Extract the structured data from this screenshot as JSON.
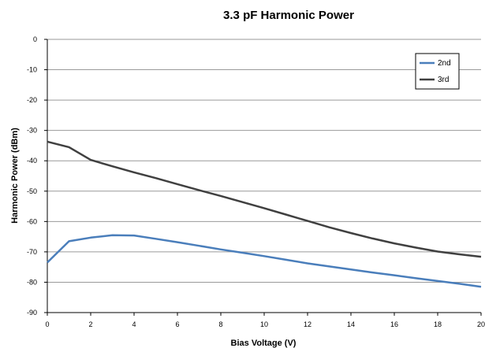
{
  "chart_data": {
    "type": "line",
    "title": "3.3 pF Harmonic Power",
    "xlabel": "Bias Voltage (V)",
    "ylabel": "Harmonic Power (dBm)",
    "xlim": [
      0,
      20
    ],
    "ylim": [
      -90,
      0
    ],
    "xticks": [
      "0",
      "2",
      "4",
      "6",
      "8",
      "10",
      "12",
      "14",
      "16",
      "18",
      "20"
    ],
    "yticks": [
      "0",
      "-10",
      "-20",
      "-30",
      "-40",
      "-50",
      "-60",
      "-70",
      "-80",
      "-90"
    ],
    "grid": "horizontal",
    "legend_position": "top-right",
    "series": [
      {
        "name": "2nd",
        "color": "#4a7ebb",
        "x": [
          0,
          1,
          2,
          3,
          4,
          5,
          6,
          7,
          8,
          9,
          10,
          11,
          12,
          13,
          14,
          15,
          16,
          17,
          18,
          19,
          20
        ],
        "y": [
          -73.5,
          -66.5,
          -65.3,
          -64.5,
          -64.6,
          -65.7,
          -66.8,
          -68.0,
          -69.2,
          -70.3,
          -71.4,
          -72.6,
          -73.8,
          -74.8,
          -75.8,
          -76.8,
          -77.7,
          -78.7,
          -79.6,
          -80.5,
          -81.5
        ]
      },
      {
        "name": "3rd",
        "color": "#404040",
        "x": [
          0,
          1,
          2,
          3,
          4,
          5,
          6,
          7,
          8,
          9,
          10,
          11,
          12,
          13,
          14,
          15,
          16,
          17,
          18,
          19,
          20
        ],
        "y": [
          -33.7,
          -35.5,
          -39.7,
          -41.8,
          -43.8,
          -45.7,
          -47.7,
          -49.7,
          -51.6,
          -53.6,
          -55.6,
          -57.7,
          -59.8,
          -61.9,
          -63.8,
          -65.6,
          -67.2,
          -68.6,
          -69.9,
          -70.8,
          -71.6
        ]
      }
    ]
  }
}
